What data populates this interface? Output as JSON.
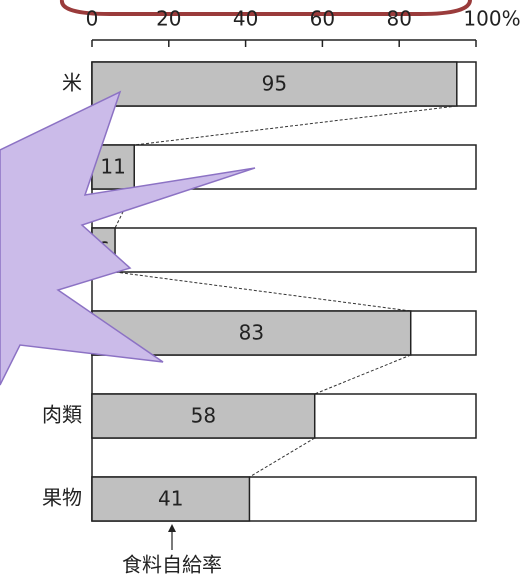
{
  "chart_data": {
    "type": "bar",
    "orientation": "horizontal",
    "categories": [
      "米",
      null,
      null,
      null,
      "肉類",
      "果物"
    ],
    "values": [
      95,
      11,
      6,
      83,
      58,
      41
    ],
    "color": "#c0c0c0",
    "xlim": [
      0,
      100
    ],
    "xticks": [
      0,
      20,
      40,
      60,
      80,
      {
        "value": 100,
        "label": "100%"
      }
    ],
    "annotation": "食料自給率"
  }
}
